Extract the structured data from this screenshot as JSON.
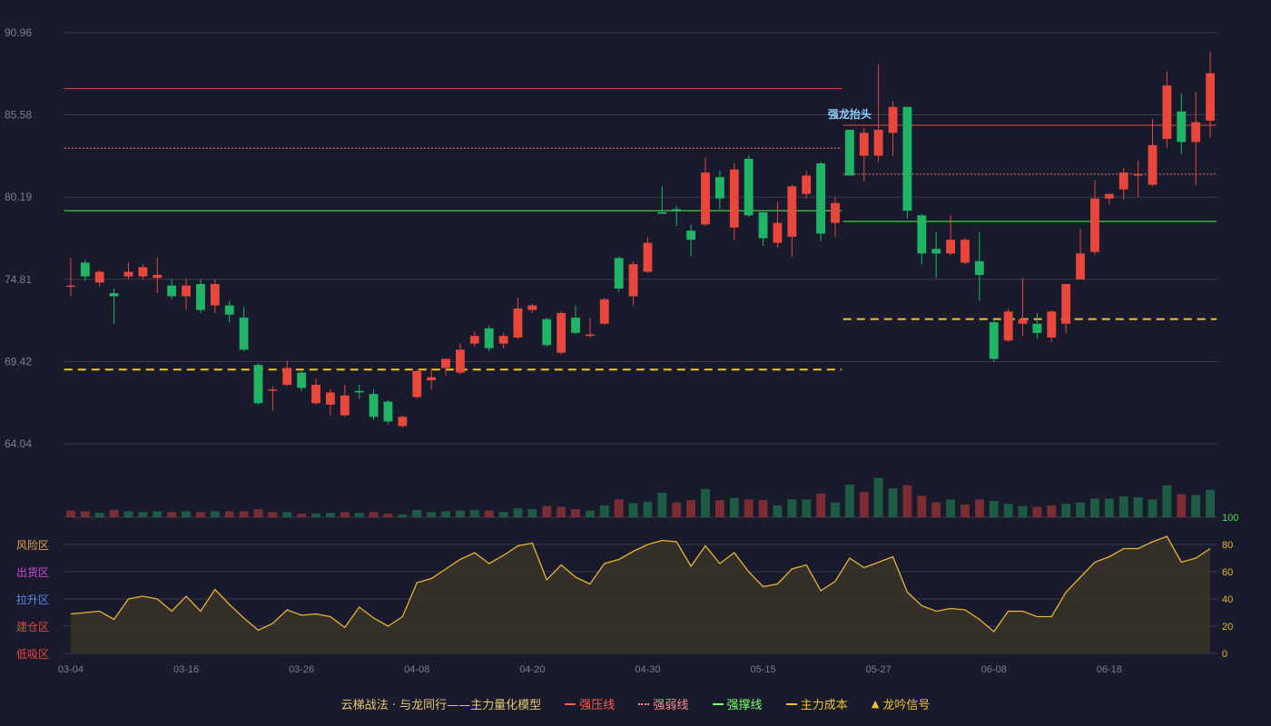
{
  "chart_data": {
    "type": "candlestick",
    "price_axis": {
      "ticks": [
        "90.96",
        "85.58",
        "80.19",
        "74.81",
        "69.42",
        "64.04"
      ],
      "min": 64.04,
      "max": 90.96
    },
    "osc_axis": {
      "ticks": [
        "100",
        "80",
        "60",
        "40",
        "20",
        "0"
      ],
      "min": 0,
      "max": 100
    },
    "x_tick_labels": [
      {
        "label": "03-04",
        "i": 0
      },
      {
        "label": "03-16",
        "i": 8
      },
      {
        "label": "03-26",
        "i": 16
      },
      {
        "label": "04-08",
        "i": 24
      },
      {
        "label": "04-20",
        "i": 32
      },
      {
        "label": "04-30",
        "i": 40
      },
      {
        "label": "05-15",
        "i": 48
      },
      {
        "label": "05-27",
        "i": 56
      },
      {
        "label": "06-08",
        "i": 64
      },
      {
        "label": "06-18",
        "i": 72
      }
    ],
    "candles": [
      [
        74.4,
        74.4,
        76.2,
        73.7
      ],
      [
        75.9,
        75.0,
        76.1,
        74.7
      ],
      [
        74.6,
        75.3,
        75.4,
        74.3
      ],
      [
        73.9,
        73.7,
        74.2,
        71.9
      ],
      [
        75.0,
        75.3,
        75.9,
        74.8
      ],
      [
        75.0,
        75.6,
        75.8,
        74.8
      ],
      [
        74.9,
        75.1,
        76.2,
        73.9
      ],
      [
        74.4,
        73.7,
        74.8,
        73.5
      ],
      [
        73.7,
        74.4,
        74.8,
        72.8
      ],
      [
        74.5,
        72.8,
        74.8,
        72.6
      ],
      [
        73.1,
        74.5,
        74.8,
        72.6
      ],
      [
        73.1,
        72.5,
        73.4,
        72.0
      ],
      [
        72.3,
        70.2,
        73.0,
        70.1
      ],
      [
        69.2,
        66.7,
        69.3,
        66.6
      ],
      [
        67.6,
        67.6,
        67.8,
        66.2
      ],
      [
        67.9,
        69.0,
        69.5,
        67.8
      ],
      [
        68.7,
        67.7,
        68.8,
        67.5
      ],
      [
        66.7,
        67.9,
        68.3,
        66.6
      ],
      [
        66.6,
        67.4,
        67.6,
        65.9
      ],
      [
        65.9,
        67.2,
        67.9,
        65.8
      ],
      [
        67.5,
        67.4,
        67.9,
        67.0
      ],
      [
        67.3,
        65.8,
        67.6,
        65.6
      ],
      [
        66.8,
        65.5,
        66.9,
        65.3
      ],
      [
        65.2,
        65.8,
        65.9,
        65.1
      ],
      [
        67.1,
        68.8,
        68.9,
        67.0
      ],
      [
        68.2,
        68.4,
        69.0,
        67.6
      ],
      [
        69.0,
        69.6,
        69.6,
        68.5
      ],
      [
        68.7,
        70.2,
        70.6,
        68.6
      ],
      [
        70.6,
        71.1,
        71.4,
        70.4
      ],
      [
        71.6,
        70.3,
        71.8,
        70.1
      ],
      [
        70.6,
        71.1,
        71.3,
        70.3
      ],
      [
        71.0,
        72.9,
        73.6,
        70.9
      ],
      [
        72.8,
        73.1,
        73.2,
        72.6
      ],
      [
        72.2,
        70.5,
        72.3,
        70.4
      ],
      [
        70.0,
        72.6,
        72.7,
        69.9
      ],
      [
        72.3,
        71.3,
        73.1,
        71.2
      ],
      [
        71.1,
        71.2,
        72.3,
        71.0
      ],
      [
        71.9,
        73.5,
        73.6,
        71.8
      ],
      [
        76.2,
        74.2,
        76.3,
        74.0
      ],
      [
        73.7,
        75.8,
        76.0,
        73.1
      ],
      [
        75.3,
        77.2,
        77.6,
        75.2
      ],
      [
        79.2,
        79.1,
        80.9,
        79.1
      ],
      [
        79.4,
        79.3,
        79.6,
        78.3
      ],
      [
        78.0,
        77.4,
        78.4,
        76.3
      ],
      [
        78.4,
        81.8,
        82.8,
        78.3
      ],
      [
        81.5,
        80.1,
        81.9,
        79.4
      ],
      [
        78.2,
        82.0,
        82.4,
        77.4
      ],
      [
        82.7,
        79.0,
        82.9,
        78.9
      ],
      [
        79.2,
        77.5,
        79.2,
        77.0
      ],
      [
        77.2,
        78.5,
        79.9,
        76.9
      ],
      [
        77.6,
        80.9,
        81.0,
        76.3
      ],
      [
        80.4,
        81.6,
        81.9,
        80.1
      ],
      [
        82.4,
        77.8,
        82.5,
        77.3
      ],
      [
        78.5,
        79.8,
        80.2,
        77.6
      ],
      [
        84.6,
        81.6,
        84.6,
        81.6
      ],
      [
        82.9,
        84.4,
        84.7,
        81.2
      ],
      [
        82.9,
        84.6,
        88.9,
        82.5
      ],
      [
        84.4,
        86.1,
        86.5,
        82.9
      ],
      [
        86.1,
        79.3,
        86.1,
        78.8
      ],
      [
        79.0,
        76.5,
        79.1,
        75.8
      ],
      [
        76.8,
        76.5,
        77.9,
        74.9
      ],
      [
        76.5,
        77.4,
        79.0,
        76.4
      ],
      [
        75.9,
        77.4,
        77.5,
        75.8
      ],
      [
        76.0,
        75.1,
        77.9,
        73.4
      ],
      [
        72.0,
        69.6,
        72.2,
        69.4
      ],
      [
        70.8,
        72.7,
        72.9,
        70.7
      ],
      [
        71.9,
        72.2,
        74.9,
        71.1
      ],
      [
        71.9,
        71.3,
        72.6,
        70.9
      ],
      [
        71.0,
        72.7,
        72.8,
        70.7
      ],
      [
        71.9,
        74.5,
        74.5,
        71.3
      ],
      [
        74.8,
        76.5,
        78.1,
        74.8
      ],
      [
        76.6,
        80.1,
        81.3,
        76.4
      ],
      [
        80.1,
        80.4,
        80.4,
        79.7
      ],
      [
        80.7,
        81.8,
        82.1,
        80.0
      ],
      [
        81.6,
        81.7,
        82.6,
        80.2
      ],
      [
        81.0,
        83.6,
        85.3,
        80.9
      ],
      [
        84.0,
        87.5,
        88.4,
        83.4
      ],
      [
        85.8,
        83.8,
        87.0,
        83.0
      ],
      [
        83.8,
        85.1,
        87.1,
        81.0
      ],
      [
        85.2,
        88.3,
        89.7,
        84.1
      ]
    ],
    "volume": [
      [
        0.09,
        "r"
      ],
      [
        0.08,
        "r"
      ],
      [
        0.06,
        "g"
      ],
      [
        0.1,
        "r"
      ],
      [
        0.08,
        "g"
      ],
      [
        0.07,
        "g"
      ],
      [
        0.08,
        "g"
      ],
      [
        0.07,
        "r"
      ],
      [
        0.08,
        "g"
      ],
      [
        0.07,
        "r"
      ],
      [
        0.08,
        "g"
      ],
      [
        0.08,
        "r"
      ],
      [
        0.08,
        "r"
      ],
      [
        0.11,
        "r"
      ],
      [
        0.07,
        "r"
      ],
      [
        0.07,
        "g"
      ],
      [
        0.05,
        "r"
      ],
      [
        0.05,
        "g"
      ],
      [
        0.06,
        "g"
      ],
      [
        0.07,
        "r"
      ],
      [
        0.06,
        "g"
      ],
      [
        0.07,
        "r"
      ],
      [
        0.05,
        "r"
      ],
      [
        0.04,
        "g"
      ],
      [
        0.1,
        "g"
      ],
      [
        0.07,
        "g"
      ],
      [
        0.08,
        "g"
      ],
      [
        0.09,
        "g"
      ],
      [
        0.1,
        "g"
      ],
      [
        0.09,
        "r"
      ],
      [
        0.07,
        "g"
      ],
      [
        0.12,
        "g"
      ],
      [
        0.11,
        "g"
      ],
      [
        0.15,
        "r"
      ],
      [
        0.14,
        "r"
      ],
      [
        0.11,
        "r"
      ],
      [
        0.09,
        "g"
      ],
      [
        0.16,
        "g"
      ],
      [
        0.24,
        "r"
      ],
      [
        0.19,
        "g"
      ],
      [
        0.21,
        "g"
      ],
      [
        0.33,
        "g"
      ],
      [
        0.2,
        "r"
      ],
      [
        0.23,
        "r"
      ],
      [
        0.38,
        "g"
      ],
      [
        0.23,
        "r"
      ],
      [
        0.26,
        "g"
      ],
      [
        0.24,
        "r"
      ],
      [
        0.23,
        "r"
      ],
      [
        0.16,
        "g"
      ],
      [
        0.24,
        "g"
      ],
      [
        0.24,
        "g"
      ],
      [
        0.32,
        "r"
      ],
      [
        0.2,
        "g"
      ],
      [
        0.44,
        "g"
      ],
      [
        0.34,
        "r"
      ],
      [
        0.53,
        "g"
      ],
      [
        0.39,
        "g"
      ],
      [
        0.43,
        "r"
      ],
      [
        0.29,
        "r"
      ],
      [
        0.2,
        "r"
      ],
      [
        0.24,
        "g"
      ],
      [
        0.17,
        "r"
      ],
      [
        0.24,
        "r"
      ],
      [
        0.22,
        "g"
      ],
      [
        0.18,
        "g"
      ],
      [
        0.15,
        "g"
      ],
      [
        0.14,
        "r"
      ],
      [
        0.16,
        "r"
      ],
      [
        0.18,
        "g"
      ],
      [
        0.2,
        "g"
      ],
      [
        0.25,
        "g"
      ],
      [
        0.25,
        "g"
      ],
      [
        0.28,
        "g"
      ],
      [
        0.27,
        "g"
      ],
      [
        0.24,
        "g"
      ],
      [
        0.43,
        "g"
      ],
      [
        0.31,
        "r"
      ],
      [
        0.3,
        "g"
      ],
      [
        0.37,
        "g"
      ]
    ],
    "oscillator": [
      29,
      30,
      31,
      25,
      40,
      42,
      40,
      31,
      42,
      31,
      47,
      36,
      26,
      17,
      22,
      32,
      28,
      29,
      27,
      19,
      34,
      26,
      20,
      27,
      52,
      55,
      62,
      69,
      74,
      66,
      72,
      79,
      81,
      54,
      65,
      56,
      51,
      66,
      69,
      75,
      80,
      83,
      82,
      64,
      79,
      66,
      74,
      60,
      49,
      51,
      62,
      65,
      46,
      53,
      70,
      63,
      67,
      71,
      45,
      35,
      31,
      33,
      32,
      25,
      16,
      31,
      31,
      27,
      27,
      45,
      56,
      67,
      71,
      77,
      77,
      82,
      86,
      67,
      70,
      77
    ],
    "levels": {
      "strong_pressure": [
        {
          "start": 0,
          "end": 53,
          "value": 87.3
        },
        {
          "start": 54,
          "end": 79,
          "value": 84.9
        }
      ],
      "strong_weak": [
        {
          "start": 0,
          "end": 53,
          "value": 83.4
        },
        {
          "start": 54,
          "end": 79,
          "value": 81.7
        }
      ],
      "support": [
        {
          "start": 0,
          "end": 53,
          "value": 79.3
        },
        {
          "start": 54,
          "end": 79,
          "value": 78.6
        }
      ],
      "main_cost": [
        {
          "start": 0,
          "end": 53,
          "value": 68.9
        },
        {
          "start": 54,
          "end": 79,
          "value": 72.2
        }
      ]
    },
    "annotations": [
      {
        "i": 54,
        "value": 85.6,
        "text": "强龙抬头"
      }
    ],
    "zones": [
      "风险区",
      "出货区",
      "拉升区",
      "建仓区",
      "低吸区"
    ]
  },
  "colors": {
    "background": "#191a2c",
    "grid": "#3a3b4d",
    "up": "#e8473c",
    "down": "#20b464",
    "vol_up": "#7a2d34",
    "vol_down": "#1f5a46",
    "osc_line": "#e6b534",
    "osc_fill": "#3a3428",
    "pressure": "#e04a3f",
    "weak": "#ff7b7b",
    "support": "#3cb043",
    "cost": "#f1c232",
    "annotation": "#8cd0ff",
    "axis_text": "#7c7f92",
    "osc_axis": "#e6b534",
    "osc_top": "#4cdc4c",
    "zone_risk": "#e8a04a",
    "zone_ship": "#d24ad6",
    "zone_lift": "#5a8ae8",
    "zone_build": "#e8473c",
    "zone_low": "#e8473c"
  },
  "legend": {
    "title": "云梯战法 · 与龙同行——主力量化模型",
    "items": [
      {
        "label": "强压线",
        "color": "#ff5a4a",
        "style": "solid"
      },
      {
        "label": "强弱线",
        "color": "#ff8a8a",
        "style": "dotted"
      },
      {
        "label": "强撑线",
        "color": "#7aff6a",
        "style": "solid"
      },
      {
        "label": "主力成本",
        "color": "#f1c232",
        "style": "dashed"
      },
      {
        "label": "龙吟信号",
        "color": "#f1c232",
        "style": "triangle"
      }
    ]
  }
}
